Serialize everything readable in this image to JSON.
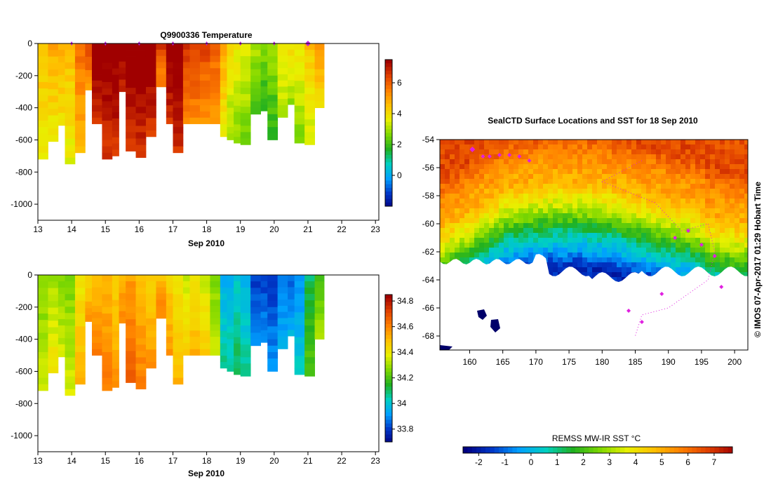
{
  "temperature_panel": {
    "title": "Q9900336  Temperature",
    "xlabel": "Sep 2010",
    "x_ticks": [
      "13",
      "14",
      "15",
      "16",
      "17",
      "18",
      "19",
      "20",
      "21",
      "22",
      "23"
    ],
    "y_ticks": [
      "0",
      "-200",
      "-400",
      "-600",
      "-800",
      "-1000"
    ],
    "colorbar_ticks": [
      "6",
      "4",
      "2",
      "0"
    ],
    "colorbar_range": [
      -2,
      7.5
    ],
    "colors": [
      "#000080",
      "#0038c8",
      "#00a0ff",
      "#00d0c0",
      "#20b020",
      "#7ed800",
      "#e8f000",
      "#ffc000",
      "#ff8000",
      "#e04000",
      "#a00000"
    ]
  },
  "salinity_panel": {
    "xlabel": "Sep 2010",
    "x_ticks": [
      "13",
      "14",
      "15",
      "16",
      "17",
      "18",
      "19",
      "20",
      "21",
      "22",
      "23"
    ],
    "y_ticks": [
      "0",
      "-200",
      "-400",
      "-600",
      "-800",
      "-1000"
    ],
    "colorbar_ticks": [
      "34.8",
      "34.6",
      "34.4",
      "34.2",
      "34",
      "33.8"
    ],
    "colorbar_range": [
      33.7,
      34.85
    ]
  },
  "map_panel": {
    "title": "SealCTD Surface Locations and SST for 18 Sep 2010",
    "lat_ticks": [
      "-54",
      "-56",
      "-58",
      "-60",
      "-62",
      "-64",
      "-66",
      "-68"
    ],
    "lon_ticks": [
      "160",
      "165",
      "170",
      "175",
      "180",
      "185",
      "190",
      "195",
      "200"
    ],
    "side_label": "© IMOS 07-Apr-2017 01:29 Hobart Time",
    "colorbar_label": "REMSS MW-IR SST °C",
    "colorbar_ticks": [
      "-2",
      "-1",
      "0",
      "1",
      "2",
      "3",
      "4",
      "5",
      "6",
      "7"
    ]
  },
  "chart_data": [
    {
      "type": "heatmap",
      "title": "Q9900336  Temperature",
      "xlabel": "Sep 2010",
      "ylabel": "",
      "xlim": [
        13,
        23.1
      ],
      "ylim": [
        -1100,
        0
      ],
      "colorbar_range": [
        -2,
        7.5
      ],
      "profile_start_dates": [
        13.0,
        13.3,
        13.6,
        13.8,
        14.1,
        14.4,
        14.6,
        14.9,
        15.2,
        15.4,
        15.6,
        15.9,
        16.2,
        16.5,
        16.8,
        17.0,
        17.3,
        17.5,
        17.8,
        18.1,
        18.4,
        18.6,
        18.8,
        19.0,
        19.3,
        19.6,
        19.8,
        20.1,
        20.4,
        20.6,
        20.9,
        21.2
      ],
      "profile_values": [
        4.4,
        4.6,
        4.7,
        4.4,
        5.5,
        6.0,
        7.5,
        7.5,
        7.5,
        7.5,
        7.5,
        7.5,
        7.5,
        6.2,
        7.5,
        7.5,
        6.3,
        6.2,
        6.1,
        5.8,
        4.6,
        3.8,
        3.6,
        3.4,
        2.8,
        2.5,
        2.6,
        3.8,
        3.7,
        3.6,
        4.2,
        4.8
      ],
      "profile_max_depth": [
        -720,
        -610,
        -510,
        -750,
        -680,
        -290,
        -500,
        -720,
        -700,
        -300,
        -670,
        -710,
        -580,
        -270,
        -500,
        -680,
        -500,
        -500,
        -500,
        -500,
        -580,
        -600,
        -620,
        -630,
        -440,
        -420,
        -600,
        -460,
        -380,
        -620,
        -630,
        -400
      ],
      "surface_markers": [
        14,
        15,
        16,
        17,
        18,
        19,
        20,
        21
      ]
    },
    {
      "type": "heatmap",
      "title": "",
      "xlabel": "Sep 2010",
      "ylabel": "",
      "xlim": [
        13,
        23.1
      ],
      "ylim": [
        -1100,
        0
      ],
      "colorbar_range": [
        33.7,
        34.85
      ],
      "profile_start_dates": [
        13.0,
        13.3,
        13.6,
        13.8,
        14.1,
        14.4,
        14.6,
        14.9,
        15.2,
        15.4,
        15.6,
        15.9,
        16.2,
        16.5,
        16.8,
        17.0,
        17.3,
        17.5,
        17.8,
        18.1,
        18.4,
        18.6,
        18.8,
        19.0,
        19.3,
        19.6,
        19.8,
        20.1,
        20.4,
        20.6,
        20.9,
        21.2
      ],
      "profile_values": [
        34.3,
        34.35,
        34.3,
        34.3,
        34.45,
        34.5,
        34.55,
        34.55,
        34.5,
        34.55,
        34.6,
        34.55,
        34.5,
        34.55,
        34.5,
        34.45,
        34.4,
        34.45,
        34.4,
        34.3,
        34.0,
        34.0,
        34.05,
        34.0,
        33.85,
        33.85,
        33.85,
        33.9,
        33.9,
        33.95,
        34.15,
        34.25
      ],
      "profile_max_depth": [
        -720,
        -610,
        -510,
        -750,
        -680,
        -290,
        -500,
        -720,
        -700,
        -300,
        -670,
        -710,
        -580,
        -270,
        -500,
        -680,
        -500,
        -500,
        -500,
        -500,
        -580,
        -600,
        -620,
        -630,
        -440,
        -420,
        -600,
        -460,
        -380,
        -620,
        -630,
        -400
      ]
    },
    {
      "type": "heatmap",
      "title": "SealCTD Surface Locations and SST for 18 Sep 2010",
      "xlabel": "",
      "ylabel": "",
      "xlim": [
        155.5,
        202
      ],
      "ylim": [
        -69,
        -54
      ],
      "colorbar_label": "REMSS MW-IR SST °C",
      "colorbar_range": [
        -2.6,
        7.7
      ],
      "sst_bands_by_latitude": [
        {
          "lat": -54.5,
          "sst": 6.5
        },
        {
          "lat": -56,
          "sst": 5.5
        },
        {
          "lat": -58,
          "sst": 4.8
        },
        {
          "lat": -60,
          "sst": 3.0
        },
        {
          "lat": -61.5,
          "sst": 1.0
        },
        {
          "lat": -63,
          "sst": -0.5
        },
        {
          "lat": -64,
          "sst": -1.8
        }
      ],
      "ice_edge_latitude": -64.0,
      "seal_positions_lon": [
        160.5,
        162,
        163,
        164.5,
        166,
        167.5,
        169,
        184,
        186,
        189,
        191,
        193,
        195,
        197,
        198
      ],
      "seal_positions_lat": [
        -54.7,
        -55.2,
        -55.2,
        -55.1,
        -55.1,
        -55.2,
        -55.5,
        -66.2,
        -67.0,
        -65.0,
        -61.0,
        -60.5,
        -61.5,
        -62.3,
        -64.5
      ]
    }
  ]
}
